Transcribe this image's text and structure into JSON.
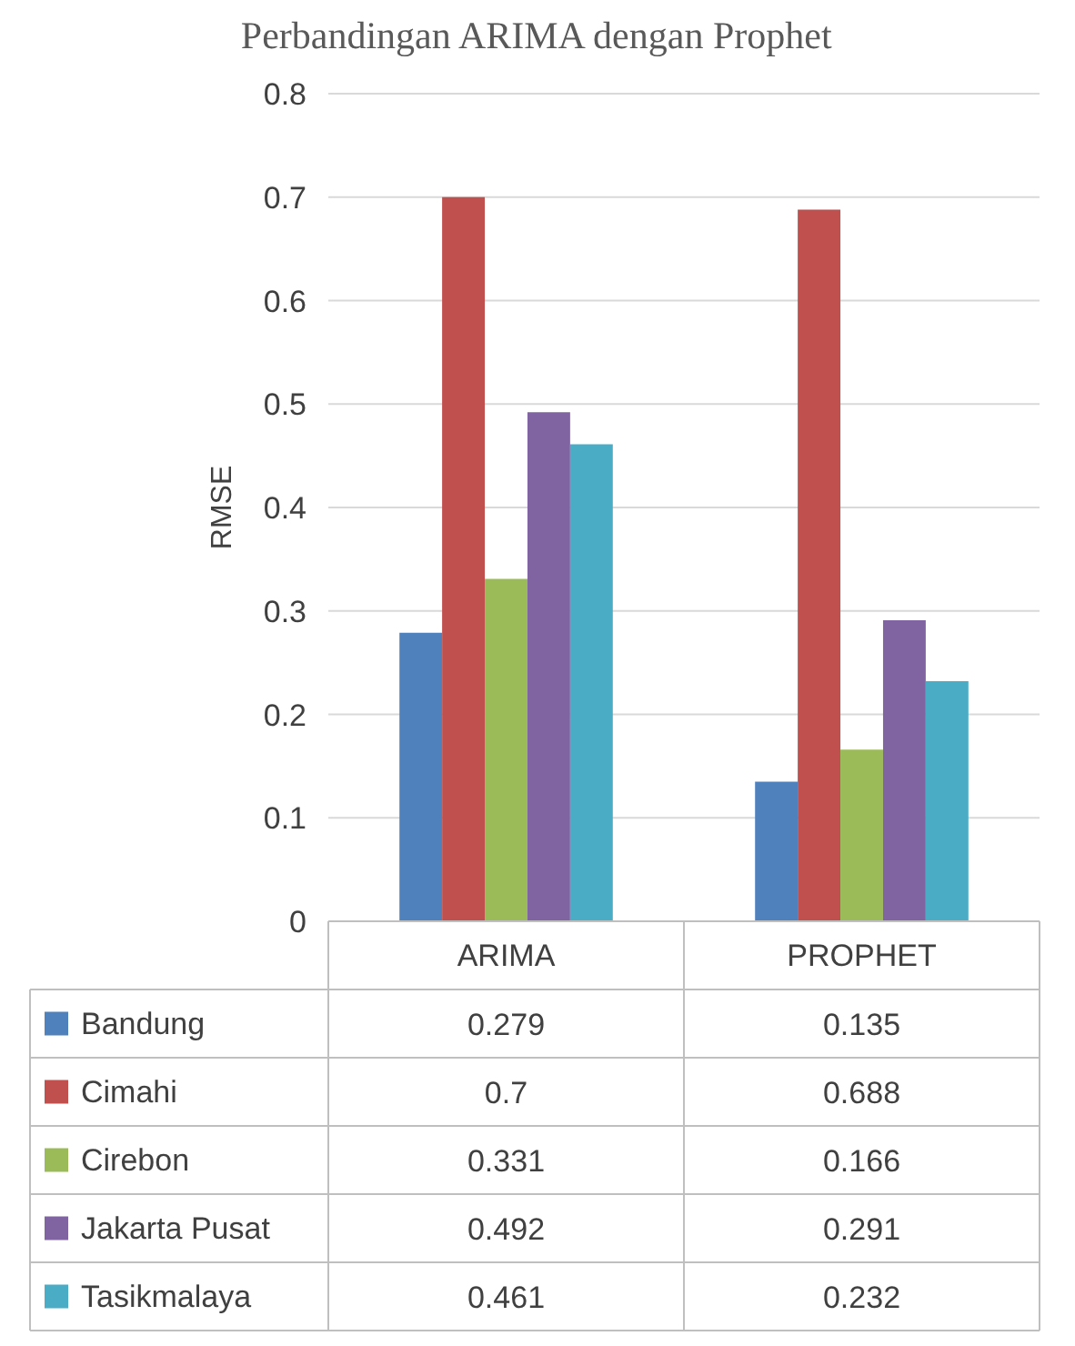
{
  "chart_data": {
    "type": "bar",
    "title": "Perbandingan ARIMA dengan Prophet",
    "ylabel": "RMSE",
    "categories": [
      "ARIMA",
      "PROPHET"
    ],
    "series": [
      {
        "name": "Bandung",
        "color": "#4f81bd",
        "values": [
          0.279,
          0.135
        ]
      },
      {
        "name": "Cimahi",
        "color": "#c0504d",
        "values": [
          0.7,
          0.688
        ]
      },
      {
        "name": "Cirebon",
        "color": "#9bbb59",
        "values": [
          0.331,
          0.166
        ]
      },
      {
        "name": "Jakarta Pusat",
        "color": "#8064a2",
        "values": [
          0.492,
          0.291
        ]
      },
      {
        "name": "Tasikmalaya",
        "color": "#4bacc6",
        "values": [
          0.461,
          0.232
        ]
      }
    ],
    "ylim": [
      0,
      0.8
    ],
    "yticks": [
      0,
      0.1,
      0.2,
      0.3,
      0.4,
      0.5,
      0.6,
      0.7,
      0.8
    ],
    "grid": "y",
    "legend": "bottom",
    "data_labels": true
  }
}
